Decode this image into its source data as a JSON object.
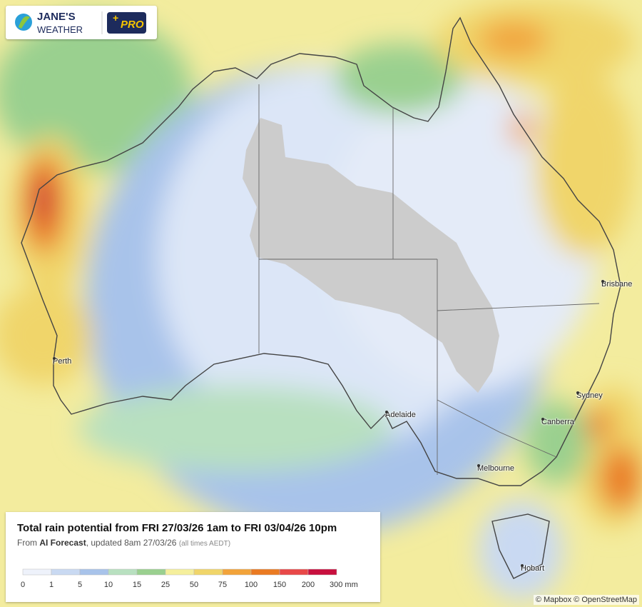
{
  "logo": {
    "brand_line1": "JANE'S",
    "brand_line2": "WEATHER",
    "badge": "PRO"
  },
  "cities": [
    {
      "label": "Perth"
    },
    {
      "label": "Adelaide"
    },
    {
      "label": "Melbourne"
    },
    {
      "label": "Hobart"
    },
    {
      "label": "Canberra"
    },
    {
      "label": "Sydney"
    },
    {
      "label": "Brisbane"
    }
  ],
  "legend": {
    "title": "Total rain potential from FRI 27/03/26 1am to FRI 03/04/26 10pm",
    "subtitle_prefix": "From ",
    "subtitle_source": "AI Forecast",
    "subtitle_updated": ", updated 8am 27/03/26",
    "subtitle_note": "(all times AEDT)",
    "colors": [
      "#eef2fb",
      "#c9d9f2",
      "#a8c3ea",
      "#b8e0c0",
      "#9ad08f",
      "#f5ef9c",
      "#f0d56a",
      "#f2a33a",
      "#ea7a22",
      "#e84848",
      "#c8103e",
      "#8c2a3c"
    ],
    "ticks": [
      "0",
      "1",
      "5",
      "10",
      "15",
      "25",
      "50",
      "75",
      "100",
      "150",
      "200",
      "300 mm"
    ]
  },
  "attribution": "© Mapbox © OpenStreetMap"
}
